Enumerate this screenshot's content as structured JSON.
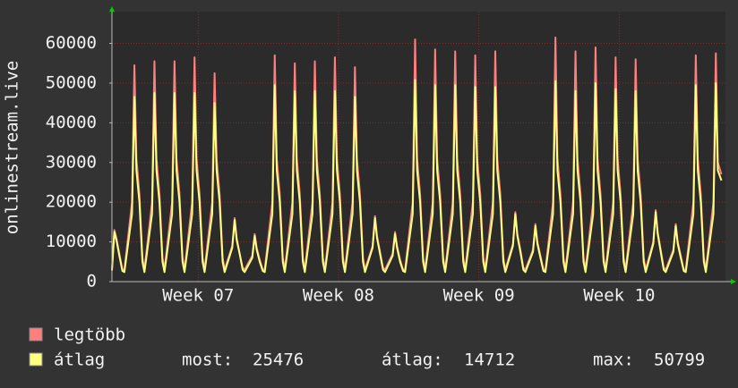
{
  "chart_data": {
    "type": "line",
    "y_label": "onlinestream.live",
    "xlim": [
      0,
      30.6
    ],
    "ylim": [
      0,
      68000
    ],
    "yticks": [
      0,
      10000,
      20000,
      30000,
      40000,
      50000,
      60000
    ],
    "xticks": [
      {
        "value": 4.3,
        "label": "Week 07"
      },
      {
        "value": 11.3,
        "label": "Week 08"
      },
      {
        "value": 18.3,
        "label": "Week 09"
      },
      {
        "value": 25.3,
        "label": "Week 10"
      }
    ],
    "grid": true,
    "x": [
      0,
      0.12,
      0.22,
      0.37,
      0.52,
      0.62,
      1,
      1.12,
      1.22,
      1.37,
      1.52,
      1.62,
      2,
      2.12,
      2.22,
      2.37,
      2.52,
      2.62,
      3,
      3.12,
      3.22,
      3.37,
      3.52,
      3.62,
      4,
      4.12,
      4.22,
      4.37,
      4.52,
      4.62,
      5,
      5.12,
      5.22,
      5.37,
      5.52,
      5.62,
      6,
      6.12,
      6.22,
      6.37,
      6.52,
      6.62,
      7,
      7.12,
      7.22,
      7.37,
      7.52,
      7.62,
      8,
      8.12,
      8.22,
      8.37,
      8.52,
      8.62,
      9,
      9.12,
      9.22,
      9.37,
      9.52,
      9.62,
      10,
      10.12,
      10.22,
      10.37,
      10.52,
      10.62,
      11,
      11.12,
      11.22,
      11.37,
      11.52,
      11.62,
      12,
      12.12,
      12.22,
      12.37,
      12.52,
      12.62,
      13,
      13.12,
      13.22,
      13.37,
      13.52,
      13.62,
      14,
      14.12,
      14.22,
      14.37,
      14.52,
      14.62,
      15,
      15.12,
      15.22,
      15.37,
      15.52,
      15.62,
      16,
      16.12,
      16.22,
      16.37,
      16.52,
      16.62,
      17,
      17.12,
      17.22,
      17.37,
      17.52,
      17.62,
      18,
      18.12,
      18.22,
      18.37,
      18.52,
      18.62,
      19,
      19.12,
      19.22,
      19.37,
      19.52,
      19.62,
      20,
      20.12,
      20.22,
      20.37,
      20.52,
      20.62,
      21,
      21.12,
      21.22,
      21.37,
      21.52,
      21.62,
      22,
      22.12,
      22.22,
      22.37,
      22.52,
      22.62,
      23,
      23.12,
      23.22,
      23.37,
      23.52,
      23.62,
      24,
      24.12,
      24.22,
      24.37,
      24.52,
      24.62,
      25,
      25.12,
      25.22,
      25.37,
      25.52,
      25.62,
      26,
      26.12,
      26.22,
      26.37,
      26.52,
      26.62,
      27,
      27.12,
      27.22,
      27.37,
      27.52,
      27.62,
      28,
      28.12,
      28.22,
      28.37,
      28.52,
      28.62,
      29,
      29.12,
      29.22,
      29.37,
      29.52,
      29.62,
      30,
      30.12,
      30.22,
      30.4
    ],
    "series": [
      {
        "name": "legtöbb",
        "color": "#ff7f7f",
        "values": [
          3000,
          13000,
          11000,
          7000,
          3000,
          3000,
          20000,
          54500,
          31000,
          22000,
          6000,
          3000,
          20000,
          55500,
          31000,
          22000,
          6000,
          3000,
          20000,
          55500,
          31000,
          22000,
          6000,
          3000,
          20000,
          56500,
          31000,
          22000,
          6000,
          3000,
          20000,
          52500,
          31000,
          22000,
          6000,
          3000,
          9000,
          16000,
          11000,
          7000,
          3500,
          3000,
          6500,
          12000,
          8500,
          5500,
          3000,
          3000,
          20000,
          57000,
          31000,
          22000,
          6000,
          3000,
          20000,
          55000,
          31000,
          22000,
          6000,
          3000,
          20000,
          55500,
          31000,
          22000,
          6000,
          3000,
          20000,
          56500,
          31000,
          22000,
          6000,
          3000,
          20000,
          54000,
          31000,
          22000,
          6000,
          3000,
          9000,
          16500,
          11500,
          7500,
          3500,
          3000,
          7000,
          12500,
          9000,
          5500,
          3000,
          3000,
          20000,
          61000,
          31000,
          22000,
          6000,
          3000,
          20000,
          58500,
          31000,
          22000,
          6000,
          3000,
          20000,
          58000,
          31000,
          22000,
          6000,
          3000,
          20000,
          57000,
          31000,
          22000,
          6000,
          3000,
          20000,
          58000,
          31000,
          22000,
          6000,
          3000,
          9500,
          17500,
          12000,
          8000,
          3500,
          3000,
          8000,
          14500,
          10000,
          6500,
          3000,
          3000,
          20000,
          61500,
          31000,
          22000,
          6000,
          3000,
          20000,
          58000,
          31000,
          22000,
          6000,
          3000,
          20000,
          59000,
          31000,
          22000,
          6000,
          3000,
          20000,
          56500,
          31000,
          22000,
          6000,
          3000,
          20000,
          56000,
          31000,
          22000,
          6000,
          3000,
          10000,
          18000,
          12500,
          8000,
          3500,
          3000,
          8000,
          14500,
          10000,
          6500,
          3000,
          3000,
          20000,
          57000,
          31000,
          22000,
          6000,
          3000,
          20000,
          57500,
          30000,
          27000
        ]
      },
      {
        "name": "átlag",
        "color": "#ffff80",
        "values": [
          2800,
          12500,
          10500,
          6500,
          2700,
          2400,
          17000,
          46500,
          28000,
          20000,
          5000,
          2400,
          17000,
          47500,
          28000,
          20000,
          5000,
          2400,
          17000,
          47500,
          28000,
          20000,
          5000,
          2400,
          17000,
          47500,
          28000,
          20000,
          5000,
          2400,
          17000,
          45000,
          28000,
          20000,
          5000,
          2400,
          8500,
          15500,
          10500,
          7000,
          3000,
          2400,
          6000,
          11500,
          8000,
          5000,
          2700,
          2400,
          17000,
          49500,
          28000,
          20000,
          5000,
          2400,
          17000,
          48000,
          28000,
          20000,
          5000,
          2400,
          17000,
          48000,
          28000,
          20000,
          5000,
          2400,
          17000,
          48000,
          28000,
          20000,
          5000,
          2400,
          17000,
          46500,
          28000,
          20000,
          5000,
          2400,
          8500,
          16000,
          11000,
          7000,
          3000,
          2400,
          6500,
          12000,
          8500,
          5000,
          2700,
          2400,
          17000,
          50799,
          28000,
          20000,
          5000,
          2400,
          17000,
          49500,
          28000,
          20000,
          5000,
          2400,
          17000,
          49500,
          28000,
          20000,
          5000,
          2400,
          17000,
          49000,
          28000,
          20000,
          5000,
          2400,
          17000,
          49000,
          28000,
          20000,
          5000,
          2400,
          9000,
          17000,
          11500,
          7500,
          3000,
          2400,
          7500,
          14000,
          9500,
          6000,
          2700,
          2400,
          17000,
          50500,
          28000,
          20000,
          5000,
          2400,
          17000,
          48000,
          28000,
          20000,
          5000,
          2400,
          17000,
          50000,
          28000,
          20000,
          5000,
          2400,
          17000,
          48500,
          28000,
          20000,
          5000,
          2400,
          17000,
          48000,
          28000,
          20000,
          5000,
          2400,
          9500,
          17500,
          12000,
          7500,
          3000,
          2400,
          7500,
          14000,
          9500,
          6000,
          2700,
          2400,
          17000,
          49500,
          28000,
          20000,
          5000,
          2400,
          17000,
          50000,
          28000,
          25476
        ]
      }
    ],
    "legend_stats": [
      {
        "label": "most:",
        "value": 25476
      },
      {
        "label": "átlag:",
        "value": 14712
      },
      {
        "label": "max:",
        "value": 50799
      }
    ]
  }
}
